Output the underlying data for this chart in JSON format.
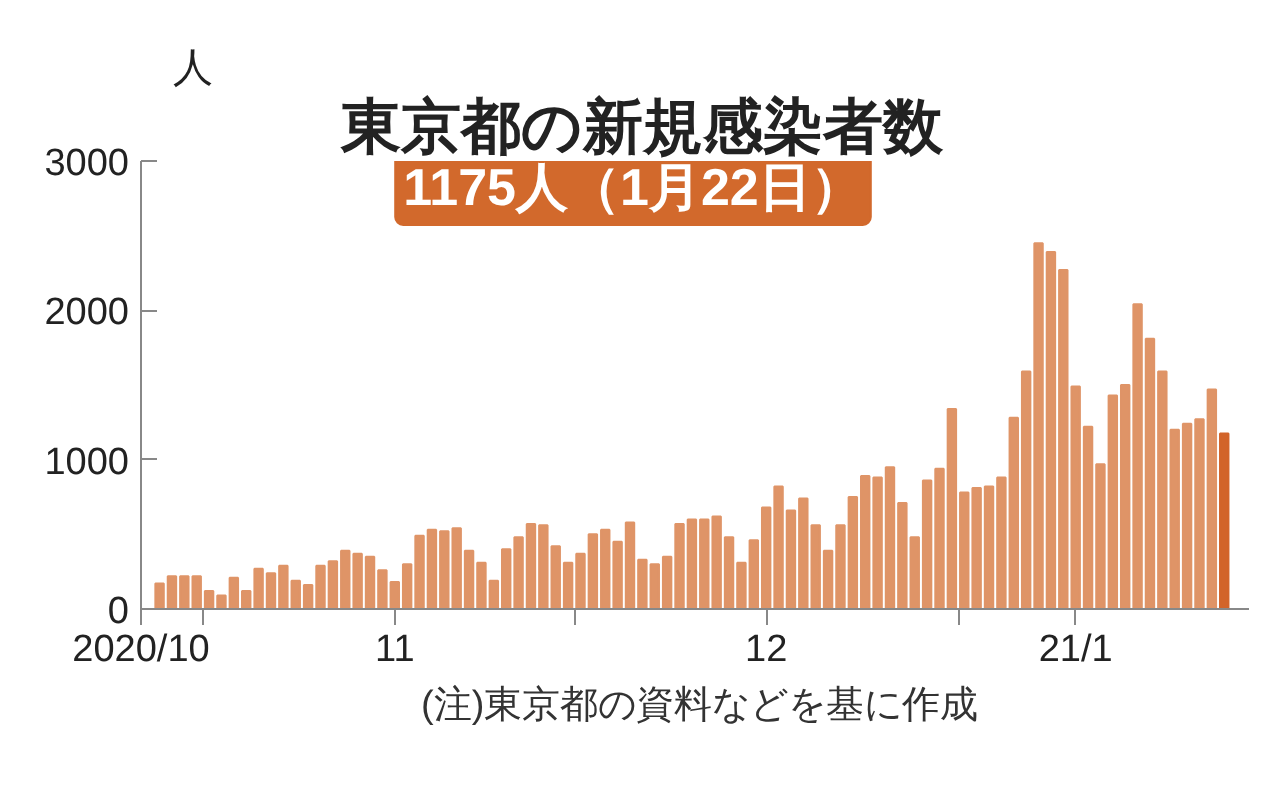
{
  "chart_data": {
    "type": "bar",
    "title": "東京都の新規感染者数",
    "subtitle": "1175人（1月22日）",
    "ylabel": "人",
    "annotations": [
      "(注)東京都の資料などを基に作成"
    ],
    "x": [
      "2020-10-28",
      "2020-10-29",
      "2020-10-30",
      "2020-10-31",
      "2020-11-01",
      "2020-11-02",
      "2020-11-03",
      "2020-11-04",
      "2020-11-05",
      "2020-11-06",
      "2020-11-07",
      "2020-11-08",
      "2020-11-09",
      "2020-11-10",
      "2020-11-11",
      "2020-11-12",
      "2020-11-13",
      "2020-11-14",
      "2020-11-15",
      "2020-11-16",
      "2020-11-17",
      "2020-11-18",
      "2020-11-19",
      "2020-11-20",
      "2020-11-21",
      "2020-11-22",
      "2020-11-23",
      "2020-11-24",
      "2020-11-25",
      "2020-11-26",
      "2020-11-27",
      "2020-11-28",
      "2020-11-29",
      "2020-11-30",
      "2020-12-01",
      "2020-12-02",
      "2020-12-03",
      "2020-12-04",
      "2020-12-05",
      "2020-12-06",
      "2020-12-07",
      "2020-12-08",
      "2020-12-09",
      "2020-12-10",
      "2020-12-11",
      "2020-12-12",
      "2020-12-13",
      "2020-12-14",
      "2020-12-15",
      "2020-12-16",
      "2020-12-17",
      "2020-12-18",
      "2020-12-19",
      "2020-12-20",
      "2020-12-21",
      "2020-12-22",
      "2020-12-23",
      "2020-12-24",
      "2020-12-25",
      "2020-12-26",
      "2020-12-27",
      "2020-12-28",
      "2020-12-29",
      "2020-12-30",
      "2020-12-31",
      "2021-01-01",
      "2021-01-02",
      "2021-01-03",
      "2021-01-04",
      "2021-01-05",
      "2021-01-06",
      "2021-01-07",
      "2021-01-08",
      "2021-01-09",
      "2021-01-10",
      "2021-01-11",
      "2021-01-12",
      "2021-01-13",
      "2021-01-14",
      "2021-01-15",
      "2021-01-16",
      "2021-01-17",
      "2021-01-18",
      "2021-01-19",
      "2021-01-20",
      "2021-01-21",
      "2021-01-22"
    ],
    "values": [
      170,
      220,
      220,
      220,
      120,
      90,
      210,
      120,
      270,
      240,
      290,
      190,
      160,
      290,
      320,
      390,
      370,
      350,
      260,
      180,
      300,
      490,
      530,
      520,
      540,
      390,
      310,
      190,
      400,
      480,
      570,
      560,
      420,
      310,
      370,
      500,
      530,
      450,
      580,
      330,
      300,
      350,
      570,
      600,
      600,
      620,
      480,
      310,
      460,
      680,
      820,
      660,
      740,
      560,
      390,
      560,
      750,
      890,
      880,
      950,
      710,
      480,
      860,
      940,
      1340,
      780,
      810,
      820,
      880,
      1280,
      1590,
      2450,
      2390,
      2270,
      1490,
      1220,
      970,
      1430,
      1500,
      2040,
      1810,
      1590,
      1200,
      1240,
      1270,
      1470,
      1175
    ],
    "colors": [
      "#df9467",
      "#df9467",
      "#df9467",
      "#df9467",
      "#df9467",
      "#df9467",
      "#df9467",
      "#df9467",
      "#df9467",
      "#df9467",
      "#df9467",
      "#df9467",
      "#df9467",
      "#df9467",
      "#df9467",
      "#df9467",
      "#df9467",
      "#df9467",
      "#df9467",
      "#df9467",
      "#df9467",
      "#df9467",
      "#df9467",
      "#df9467",
      "#df9467",
      "#df9467",
      "#df9467",
      "#df9467",
      "#df9467",
      "#df9467",
      "#df9467",
      "#df9467",
      "#df9467",
      "#df9467",
      "#df9467",
      "#df9467",
      "#df9467",
      "#df9467",
      "#df9467",
      "#df9467",
      "#df9467",
      "#df9467",
      "#df9467",
      "#df9467",
      "#df9467",
      "#df9467",
      "#df9467",
      "#df9467",
      "#df9467",
      "#df9467",
      "#df9467",
      "#df9467",
      "#df9467",
      "#df9467",
      "#df9467",
      "#df9467",
      "#df9467",
      "#df9467",
      "#df9467",
      "#df9467",
      "#df9467",
      "#df9467",
      "#df9467",
      "#df9467",
      "#df9467",
      "#df9467",
      "#df9467",
      "#df9467",
      "#df9467",
      "#df9467",
      "#df9467",
      "#df9467",
      "#df9467",
      "#df9467",
      "#df9467",
      "#df9467",
      "#df9467",
      "#df9467",
      "#df9467",
      "#df9467",
      "#df9467",
      "#df9467",
      "#df9467",
      "#df9467",
      "#df9467",
      "#df9467",
      "#d2642a"
    ],
    "xlim": [
      "2020-10-26T12:00",
      "2021-01-24"
    ],
    "xticks": [
      {
        "value": "2020-10-26T12:00",
        "label": "2020/10"
      },
      {
        "value": "2020-10-31T12:00",
        "label": null
      },
      {
        "value": "2020-11-16",
        "label": "11"
      },
      {
        "value": "2020-11-30T12:00",
        "label": null
      },
      {
        "value": "2020-12-16",
        "label": "12"
      },
      {
        "value": "2020-12-31T12:00",
        "label": null
      },
      {
        "value": "2021-01-10",
        "label": "21/1"
      }
    ],
    "ylim": [
      0,
      3000
    ],
    "yticks": [
      0,
      1000,
      2000,
      3000
    ],
    "grid": false
  }
}
